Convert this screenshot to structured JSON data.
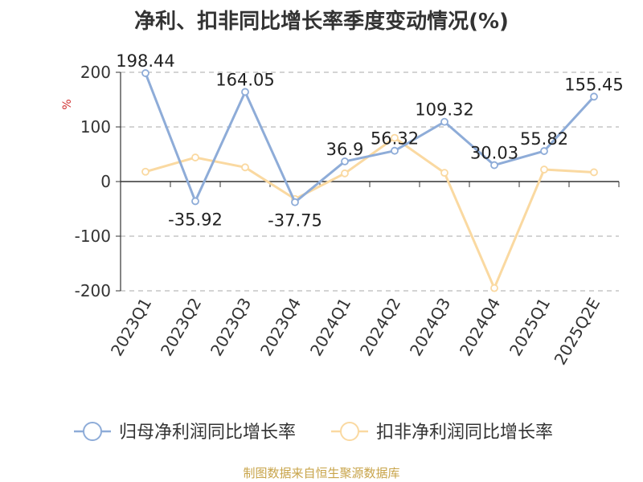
{
  "chart_data": {
    "type": "line",
    "title": "净利、扣非同比增长率季度变动情况(%)",
    "ylabel": "%",
    "categories": [
      "2023Q1",
      "2023Q2",
      "2023Q3",
      "2023Q4",
      "2024Q1",
      "2024Q2",
      "2024Q3",
      "2024Q4",
      "2025Q1",
      "2025Q2E"
    ],
    "ylim": [
      -200,
      200
    ],
    "yticks": [
      200,
      100,
      0,
      -100,
      -200
    ],
    "grid": true,
    "legend_position": "bottom",
    "series": [
      {
        "name": "归母净利润同比增长率",
        "color": "#8eacd8",
        "values": [
          198.44,
          -35.92,
          164.05,
          -37.75,
          36.9,
          56.32,
          109.32,
          30.03,
          55.82,
          155.45
        ],
        "labels": [
          "198.44",
          "-35.92",
          "164.05",
          "-37.75",
          "36.9",
          "56.32",
          "109.32",
          "30.03",
          "55.82",
          "155.45"
        ]
      },
      {
        "name": "扣非净利润同比增长率",
        "color": "#fad9a1",
        "values": [
          18,
          44,
          26,
          -32,
          15,
          80,
          16,
          -195,
          22,
          17
        ]
      }
    ]
  },
  "footer": {
    "source": "制图数据来自恒生聚源数据库"
  }
}
